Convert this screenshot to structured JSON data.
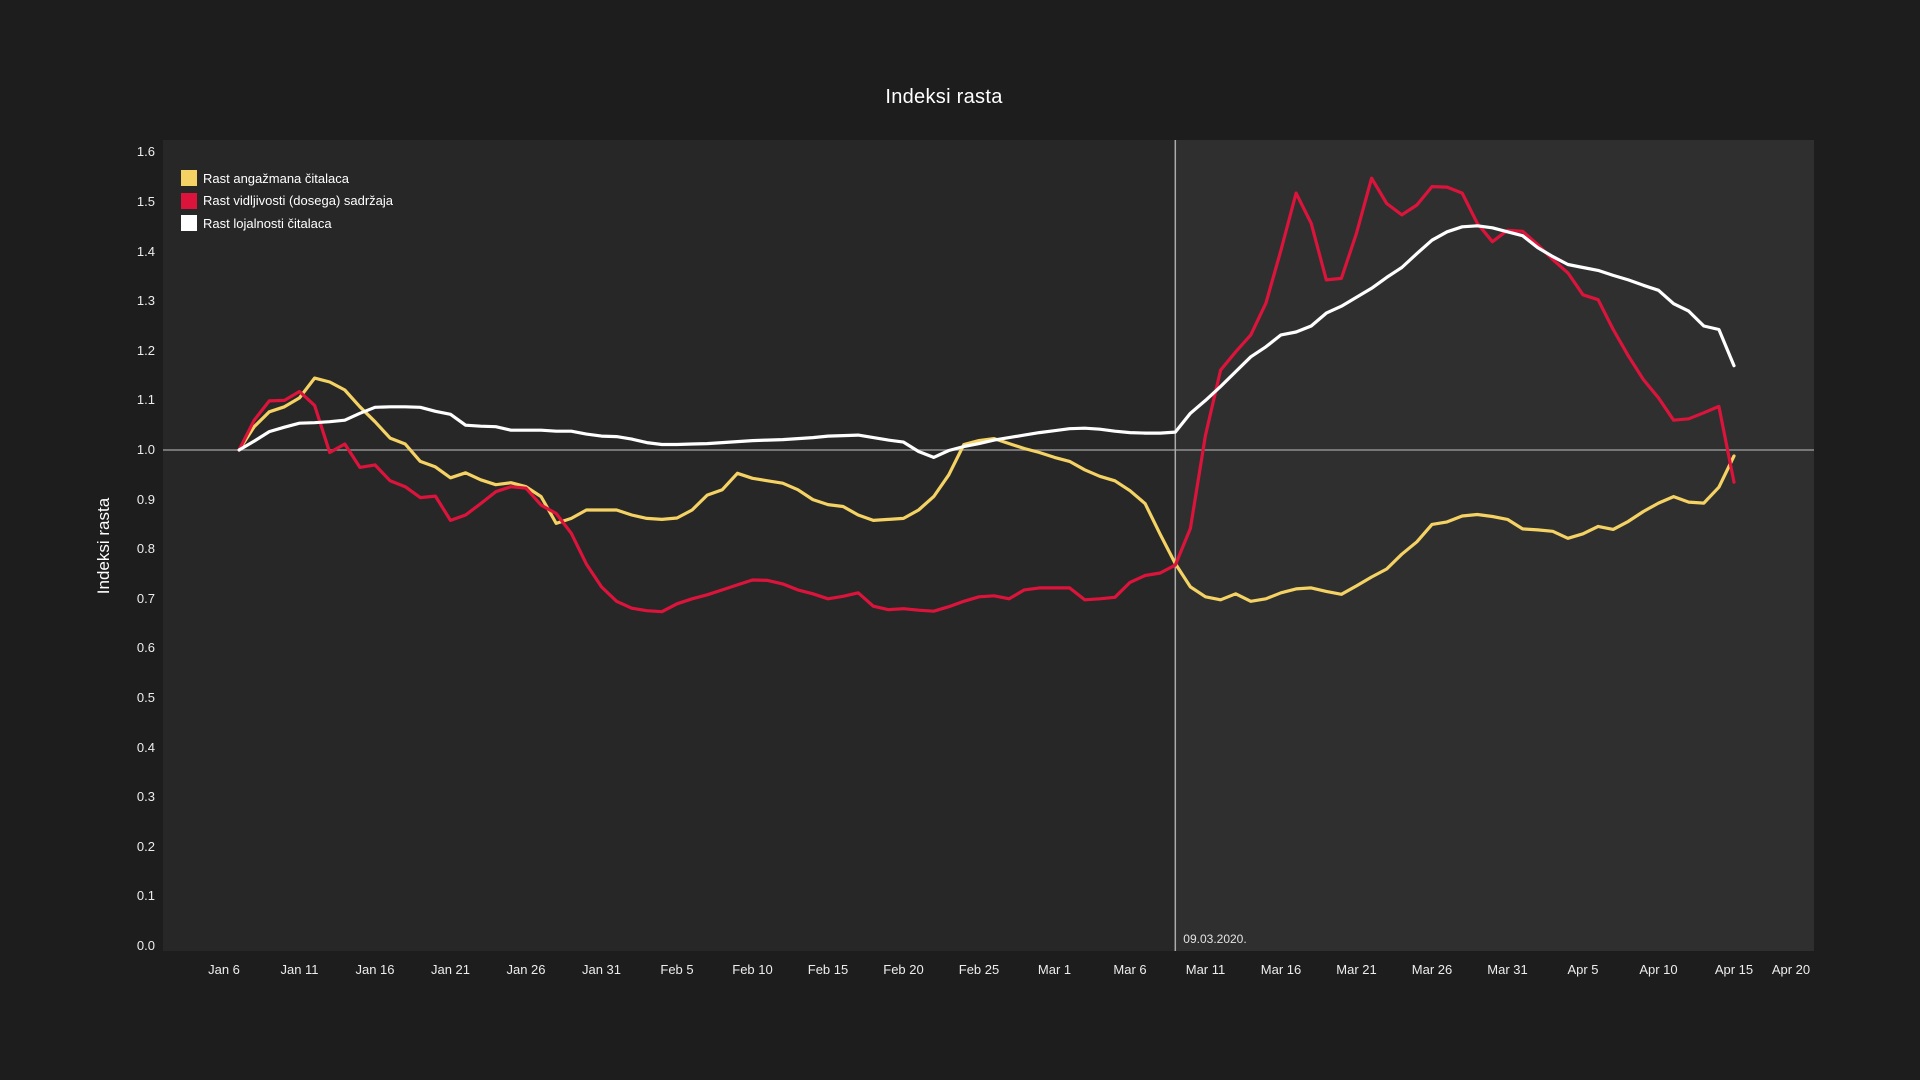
{
  "title": "Indeksi rasta",
  "y_axis_label": "Indeksi rasta",
  "colors": {
    "page_background": "#1d1d1d",
    "plot_background": "#272727",
    "highlight_background": "#2f2f2f",
    "gridline": "#8f8f8f",
    "marker_line": "#ababab",
    "tick_text": "#ededed",
    "title_text": "#ffffff"
  },
  "chart_data": {
    "type": "line",
    "title": "Indeksi rasta",
    "xlabel": "",
    "ylabel": "Indeksi rasta",
    "ylim": [
      0.0,
      1.63
    ],
    "grid": "horizontal line at 1.0 only",
    "legend_position": "top-left inside plot",
    "y_ticks": [
      "0.0",
      "0.1",
      "0.2",
      "0.3",
      "0.4",
      "0.5",
      "0.6",
      "0.7",
      "0.8",
      "0.9",
      "1.0",
      "1.1",
      "1.2",
      "1.3",
      "1.4",
      "1.5",
      "1.6"
    ],
    "x_ticks": [
      {
        "day": 0,
        "label": "Jan 6"
      },
      {
        "day": 5,
        "label": "Jan 11"
      },
      {
        "day": 10,
        "label": "Jan 16"
      },
      {
        "day": 15,
        "label": "Jan 21"
      },
      {
        "day": 20,
        "label": "Jan 26"
      },
      {
        "day": 25,
        "label": "Jan 31"
      },
      {
        "day": 30,
        "label": "Feb 5"
      },
      {
        "day": 35,
        "label": "Feb 10"
      },
      {
        "day": 40,
        "label": "Feb 15"
      },
      {
        "day": 45,
        "label": "Feb 20"
      },
      {
        "day": 50,
        "label": "Feb 25"
      },
      {
        "day": 55,
        "label": "Mar 1"
      },
      {
        "day": 60,
        "label": "Mar 6"
      },
      {
        "day": 65,
        "label": "Mar 11"
      },
      {
        "day": 70,
        "label": "Mar 16"
      },
      {
        "day": 75,
        "label": "Mar 21"
      },
      {
        "day": 80,
        "label": "Mar 26"
      },
      {
        "day": 85,
        "label": "Mar 31"
      },
      {
        "day": 90,
        "label": "Apr 5"
      },
      {
        "day": 95,
        "label": "Apr 10"
      },
      {
        "day": 100,
        "label": "Apr 15"
      },
      {
        "day": 105,
        "label": "Apr 20"
      }
    ],
    "vertical_marker": {
      "label": "09.03.2020.",
      "date": "Mar 9",
      "day_index": 63
    },
    "highlight_region": {
      "from_day_index": 63,
      "to_plot_right": true
    },
    "start_day_index": 1,
    "dates": [
      "Jan 7",
      "Jan 8",
      "Jan 9",
      "Jan 10",
      "Jan 11",
      "Jan 12",
      "Jan 13",
      "Jan 14",
      "Jan 15",
      "Jan 16",
      "Jan 17",
      "Jan 18",
      "Jan 19",
      "Jan 20",
      "Jan 21",
      "Jan 22",
      "Jan 23",
      "Jan 24",
      "Jan 25",
      "Jan 26",
      "Jan 27",
      "Jan 28",
      "Jan 29",
      "Jan 30",
      "Jan 31",
      "Feb 1",
      "Feb 2",
      "Feb 3",
      "Feb 4",
      "Feb 5",
      "Feb 6",
      "Feb 7",
      "Feb 8",
      "Feb 9",
      "Feb 10",
      "Feb 11",
      "Feb 12",
      "Feb 13",
      "Feb 14",
      "Feb 15",
      "Feb 16",
      "Feb 17",
      "Feb 18",
      "Feb 19",
      "Feb 20",
      "Feb 21",
      "Feb 22",
      "Feb 23",
      "Feb 24",
      "Feb 25",
      "Feb 26",
      "Feb 27",
      "Feb 28",
      "Feb 29",
      "Mar 1",
      "Mar 2",
      "Mar 3",
      "Mar 4",
      "Mar 5",
      "Mar 6",
      "Mar 7",
      "Mar 8",
      "Mar 9",
      "Mar 10",
      "Mar 11",
      "Mar 12",
      "Mar 13",
      "Mar 14",
      "Mar 15",
      "Mar 16",
      "Mar 17",
      "Mar 18",
      "Mar 19",
      "Mar 20",
      "Mar 21",
      "Mar 22",
      "Mar 23",
      "Mar 24",
      "Mar 25",
      "Mar 26",
      "Mar 27",
      "Mar 28",
      "Mar 29",
      "Mar 30",
      "Mar 31",
      "Apr 1",
      "Apr 2",
      "Apr 3",
      "Apr 4",
      "Apr 5",
      "Apr 6",
      "Apr 7",
      "Apr 8",
      "Apr 9",
      "Apr 10",
      "Apr 11",
      "Apr 12",
      "Apr 13",
      "Apr 14",
      "Apr 15"
    ],
    "series": [
      {
        "name": "Rast angažmana čitalaca",
        "color": "#f5d264",
        "values": [
          1.0,
          1.047,
          1.077,
          1.087,
          1.105,
          1.145,
          1.137,
          1.121,
          1.087,
          1.057,
          1.024,
          1.012,
          0.977,
          0.966,
          0.944,
          0.954,
          0.94,
          0.93,
          0.934,
          0.926,
          0.906,
          0.852,
          0.862,
          0.879,
          0.879,
          0.879,
          0.869,
          0.862,
          0.86,
          0.863,
          0.879,
          0.909,
          0.92,
          0.953,
          0.943,
          0.938,
          0.933,
          0.92,
          0.9,
          0.89,
          0.886,
          0.869,
          0.858,
          0.86,
          0.862,
          0.879,
          0.906,
          0.95,
          1.011,
          1.019,
          1.023,
          1.013,
          1.003,
          0.995,
          0.985,
          0.977,
          0.96,
          0.947,
          0.938,
          0.918,
          0.892,
          0.83,
          0.771,
          0.724,
          0.704,
          0.698,
          0.71,
          0.695,
          0.7,
          0.712,
          0.72,
          0.722,
          0.715,
          0.709,
          0.726,
          0.744,
          0.76,
          0.79,
          0.815,
          0.85,
          0.855,
          0.867,
          0.87,
          0.866,
          0.86,
          0.841,
          0.839,
          0.836,
          0.822,
          0.831,
          0.846,
          0.84,
          0.856,
          0.876,
          0.893,
          0.906,
          0.895,
          0.893,
          0.925,
          0.988
        ]
      },
      {
        "name": "Rast vidljivosti (dosega) sadržaja",
        "color": "#dc143c",
        "values": [
          1.0,
          1.06,
          1.099,
          1.1,
          1.118,
          1.09,
          0.995,
          1.012,
          0.965,
          0.97,
          0.938,
          0.926,
          0.904,
          0.907,
          0.858,
          0.869,
          0.892,
          0.916,
          0.926,
          0.923,
          0.889,
          0.872,
          0.832,
          0.77,
          0.724,
          0.695,
          0.681,
          0.676,
          0.674,
          0.69,
          0.7,
          0.708,
          0.718,
          0.728,
          0.738,
          0.737,
          0.73,
          0.718,
          0.71,
          0.7,
          0.705,
          0.712,
          0.685,
          0.678,
          0.68,
          0.677,
          0.675,
          0.684,
          0.695,
          0.704,
          0.706,
          0.7,
          0.718,
          0.722,
          0.722,
          0.722,
          0.698,
          0.7,
          0.703,
          0.733,
          0.747,
          0.752,
          0.768,
          0.842,
          1.03,
          1.161,
          1.198,
          1.232,
          1.296,
          1.403,
          1.518,
          1.457,
          1.343,
          1.346,
          1.437,
          1.548,
          1.497,
          1.474,
          1.494,
          1.531,
          1.53,
          1.518,
          1.457,
          1.42,
          1.443,
          1.441,
          1.414,
          1.384,
          1.357,
          1.313,
          1.303,
          1.243,
          1.19,
          1.142,
          1.105,
          1.06,
          1.063,
          1.075,
          1.088,
          0.935
        ]
      },
      {
        "name": "Rast lojalnosti čitalaca",
        "color": "#ffffff",
        "values": [
          1.0,
          1.018,
          1.037,
          1.046,
          1.054,
          1.055,
          1.057,
          1.06,
          1.074,
          1.086,
          1.087,
          1.087,
          1.086,
          1.078,
          1.072,
          1.05,
          1.048,
          1.047,
          1.04,
          1.04,
          1.04,
          1.038,
          1.038,
          1.032,
          1.028,
          1.027,
          1.022,
          1.015,
          1.011,
          1.011,
          1.012,
          1.013,
          1.015,
          1.017,
          1.019,
          1.02,
          1.021,
          1.023,
          1.025,
          1.028,
          1.029,
          1.03,
          1.025,
          1.02,
          1.016,
          0.997,
          0.985,
          0.999,
          1.007,
          1.013,
          1.02,
          1.025,
          1.03,
          1.035,
          1.039,
          1.043,
          1.044,
          1.042,
          1.038,
          1.035,
          1.034,
          1.034,
          1.036,
          1.074,
          1.1,
          1.128,
          1.158,
          1.188,
          1.208,
          1.232,
          1.238,
          1.25,
          1.276,
          1.29,
          1.308,
          1.326,
          1.348,
          1.368,
          1.396,
          1.423,
          1.44,
          1.45,
          1.452,
          1.448,
          1.44,
          1.432,
          1.408,
          1.39,
          1.374,
          1.368,
          1.362,
          1.352,
          1.343,
          1.332,
          1.322,
          1.295,
          1.28,
          1.25,
          1.243,
          1.17
        ]
      }
    ]
  }
}
